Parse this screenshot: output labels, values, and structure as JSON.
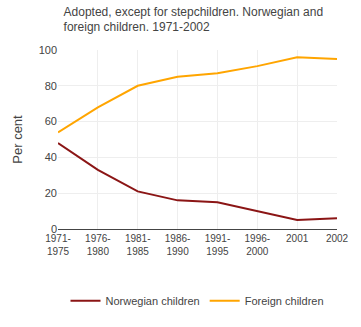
{
  "chart_data": {
    "type": "line",
    "title": "Adopted, except for stepchildren. Norwegian and\nforeign children. 1971-2002",
    "ylabel": "Per cent",
    "categories": [
      "1971-\n1975",
      "1976-\n1980",
      "1981-\n1985",
      "1986-\n1990",
      "1991-\n1995",
      "1996-\n2000",
      "2001",
      "2002"
    ],
    "series": [
      {
        "name": "Norwegian children",
        "color": "#8B1515",
        "values": [
          48,
          33,
          21,
          16,
          15,
          10,
          5,
          6
        ]
      },
      {
        "name": "Foreign children",
        "color": "#FFA500",
        "values": [
          54,
          68,
          80,
          85,
          87,
          91,
          96,
          95
        ]
      }
    ],
    "ylim": [
      0,
      100
    ],
    "yticks": [
      0,
      20,
      40,
      60,
      80,
      100
    ],
    "grid": true,
    "legend": "bottom"
  }
}
